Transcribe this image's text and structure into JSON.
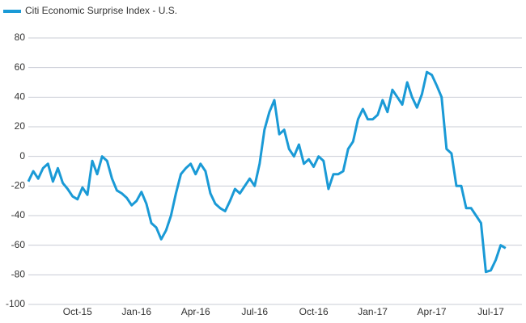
{
  "chart_data": {
    "type": "line",
    "categories": [
      null,
      null,
      null,
      null,
      null,
      null,
      null,
      null,
      null,
      null,
      "Oct-15",
      null,
      null,
      null,
      null,
      null,
      null,
      null,
      null,
      null,
      null,
      null,
      "Jan-16",
      null,
      null,
      null,
      null,
      null,
      null,
      null,
      null,
      null,
      null,
      null,
      "Apr-16",
      null,
      null,
      null,
      null,
      null,
      null,
      null,
      null,
      null,
      null,
      null,
      "Jul-16",
      null,
      null,
      null,
      null,
      null,
      null,
      null,
      null,
      null,
      null,
      null,
      "Oct-16",
      null,
      null,
      null,
      null,
      null,
      null,
      null,
      null,
      null,
      null,
      null,
      "Jan-17",
      null,
      null,
      null,
      null,
      null,
      null,
      null,
      null,
      null,
      null,
      null,
      "Apr-17",
      null,
      null,
      null,
      null,
      null,
      null,
      null,
      null,
      null,
      null,
      null,
      "Jul-17",
      null,
      null,
      null
    ],
    "series": [
      {
        "name": "Citi Economic Surprise Index - U.S.",
        "color": "#1a9ad6",
        "values": [
          -17,
          -10,
          -15,
          -8,
          -5,
          -17,
          -8,
          -18,
          -22,
          -27,
          -29,
          -21,
          -26,
          -3,
          -12,
          0,
          -3,
          -15,
          -23,
          -25,
          -28,
          -33,
          -30,
          -24,
          -32,
          -45,
          -48,
          -56,
          -50,
          -40,
          -25,
          -12,
          -8,
          -5,
          -12,
          -5,
          -10,
          -25,
          -32,
          -35,
          -37,
          -30,
          -22,
          -25,
          -20,
          -15,
          -20,
          -5,
          18,
          30,
          38,
          15,
          18,
          5,
          0,
          8,
          -5,
          -2,
          -7,
          0,
          -3,
          -22,
          -12,
          -12,
          -10,
          5,
          10,
          25,
          32,
          25,
          25,
          28,
          38,
          30,
          45,
          40,
          35,
          50,
          40,
          33,
          42,
          57,
          55,
          48,
          40,
          5,
          2,
          -20,
          -20,
          -35,
          -35,
          -40,
          -45,
          -78,
          -77,
          -70,
          -60,
          -62
        ]
      }
    ],
    "ylim": [
      -100,
      80
    ],
    "yticks": [
      -100,
      -80,
      -60,
      -40,
      -20,
      0,
      20,
      40,
      60,
      80
    ],
    "grid": true,
    "legend": "top-left"
  }
}
